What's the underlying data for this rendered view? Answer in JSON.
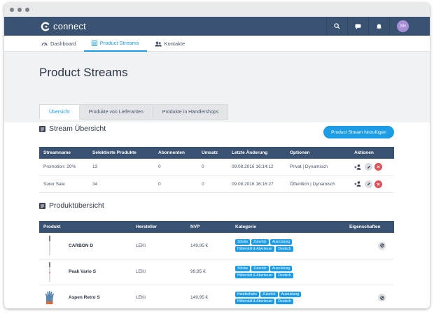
{
  "app": {
    "name": "connect",
    "user_initials": "SH"
  },
  "nav": {
    "items": [
      {
        "label": "Dashboard",
        "icon": "gauge-icon",
        "active": false
      },
      {
        "label": "Product Streams",
        "icon": "list-icon",
        "active": true
      },
      {
        "label": "Kontakte",
        "icon": "users-icon",
        "active": false
      }
    ]
  },
  "page": {
    "title": "Product Streams",
    "tabs": [
      {
        "label": "Übersicht",
        "active": true
      },
      {
        "label": "Produkte von Lieferanten",
        "active": false
      },
      {
        "label": "Produkte in Händlershops",
        "active": false
      }
    ]
  },
  "stream_section": {
    "title": "Stream Übersicht",
    "add_button": "Product Stream hinzufügen",
    "headers": [
      "Streamname",
      "Selektierte Produkte",
      "Abonnenten",
      "Umsatz",
      "Letzte Änderung",
      "Optionen",
      "Aktionen"
    ],
    "rows": [
      {
        "name": "Promotion: 20%",
        "selected": "13",
        "subscribers": "0",
        "revenue": "0",
        "changed": "09.08.2016 16:14:12",
        "options": "Privat | Dynamisch"
      },
      {
        "name": "Surer Sale",
        "selected": "34",
        "subscribers": "0",
        "revenue": "0",
        "changed": "09.08.2016 16:16:27",
        "options": "Öffentlich | Dynamisch"
      }
    ]
  },
  "product_section": {
    "title": "Produktübersicht",
    "headers": [
      "Produkt",
      "Hersteller",
      "NVP",
      "Kategorie",
      "Eigenschaften"
    ],
    "rows": [
      {
        "name": "CARBON D",
        "maker": "LEKI",
        "price": "149,95 €",
        "tags": [
          "Stöcke",
          "Zubehör",
          "Ausrüstung",
          "Höhenluft & Abenteuer",
          "Deutsch"
        ],
        "thumb": "pole"
      },
      {
        "name": "Peak Vario S",
        "maker": "LEKI",
        "price": "99,95 €",
        "tags": [
          "Stöcke",
          "Zubehör",
          "Ausrüstung",
          "Höhenluft & Abenteuer",
          "Deutsch"
        ],
        "thumb": "pole"
      },
      {
        "name": "Aspen Retro S",
        "maker": "LEKI",
        "price": "149,95 €",
        "tags": [
          "Handschuhe",
          "Zubehör",
          "Ausrüstung",
          "Höhenluft & Abenteuer",
          "Deutsch"
        ],
        "thumb": "glove"
      }
    ]
  },
  "colors": {
    "header": "#3a5272",
    "accent": "#1d9ce6",
    "delete": "#e0505a",
    "avatar": "#a78fd6"
  }
}
